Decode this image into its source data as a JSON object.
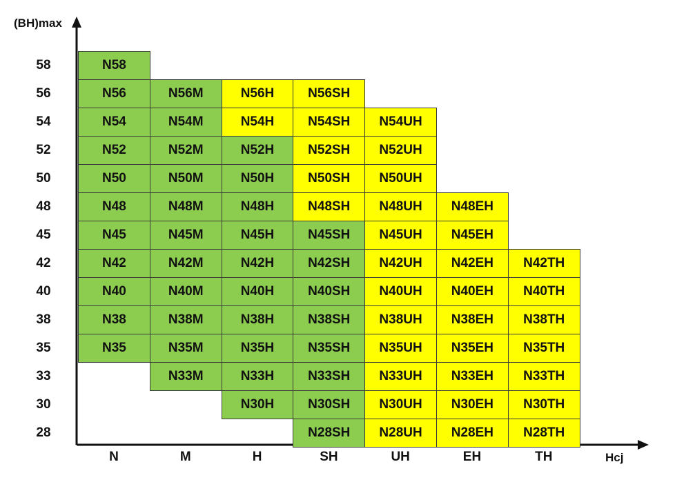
{
  "chart_data": {
    "type": "table",
    "ylabel": "(BH)max",
    "xlabel": "Hcj",
    "x_categories": [
      "N",
      "M",
      "H",
      "SH",
      "UH",
      "EH",
      "TH"
    ],
    "y_categories": [
      "58",
      "56",
      "54",
      "52",
      "50",
      "48",
      "45",
      "42",
      "40",
      "38",
      "35",
      "33",
      "30",
      "28"
    ],
    "colors": {
      "green": "#8ccd50",
      "yellow": "#ffff00",
      "axis": "#111111"
    },
    "grid": [
      [
        {
          "t": "N58",
          "c": "green"
        },
        null,
        null,
        null,
        null,
        null,
        null
      ],
      [
        {
          "t": "N56",
          "c": "green"
        },
        {
          "t": "N56M",
          "c": "green"
        },
        {
          "t": "N56H",
          "c": "yellow"
        },
        {
          "t": "N56SH",
          "c": "yellow"
        },
        null,
        null,
        null
      ],
      [
        {
          "t": "N54",
          "c": "green"
        },
        {
          "t": "N54M",
          "c": "green"
        },
        {
          "t": "N54H",
          "c": "yellow"
        },
        {
          "t": "N54SH",
          "c": "yellow"
        },
        {
          "t": "N54UH",
          "c": "yellow"
        },
        null,
        null
      ],
      [
        {
          "t": "N52",
          "c": "green"
        },
        {
          "t": "N52M",
          "c": "green"
        },
        {
          "t": "N52H",
          "c": "green"
        },
        {
          "t": "N52SH",
          "c": "yellow"
        },
        {
          "t": "N52UH",
          "c": "yellow"
        },
        null,
        null
      ],
      [
        {
          "t": "N50",
          "c": "green"
        },
        {
          "t": "N50M",
          "c": "green"
        },
        {
          "t": "N50H",
          "c": "green"
        },
        {
          "t": "N50SH",
          "c": "yellow"
        },
        {
          "t": "N50UH",
          "c": "yellow"
        },
        null,
        null
      ],
      [
        {
          "t": "N48",
          "c": "green"
        },
        {
          "t": "N48M",
          "c": "green"
        },
        {
          "t": "N48H",
          "c": "green"
        },
        {
          "t": "N48SH",
          "c": "yellow"
        },
        {
          "t": "N48UH",
          "c": "yellow"
        },
        {
          "t": "N48EH",
          "c": "yellow"
        },
        null
      ],
      [
        {
          "t": "N45",
          "c": "green"
        },
        {
          "t": "N45M",
          "c": "green"
        },
        {
          "t": "N45H",
          "c": "green"
        },
        {
          "t": "N45SH",
          "c": "green"
        },
        {
          "t": "N45UH",
          "c": "yellow"
        },
        {
          "t": "N45EH",
          "c": "yellow"
        },
        null
      ],
      [
        {
          "t": "N42",
          "c": "green"
        },
        {
          "t": "N42M",
          "c": "green"
        },
        {
          "t": "N42H",
          "c": "green"
        },
        {
          "t": "N42SH",
          "c": "green"
        },
        {
          "t": "N42UH",
          "c": "yellow"
        },
        {
          "t": "N42EH",
          "c": "yellow"
        },
        {
          "t": "N42TH",
          "c": "yellow"
        }
      ],
      [
        {
          "t": "N40",
          "c": "green"
        },
        {
          "t": "N40M",
          "c": "green"
        },
        {
          "t": "N40H",
          "c": "green"
        },
        {
          "t": "N40SH",
          "c": "green"
        },
        {
          "t": "N40UH",
          "c": "yellow"
        },
        {
          "t": "N40EH",
          "c": "yellow"
        },
        {
          "t": "N40TH",
          "c": "yellow"
        }
      ],
      [
        {
          "t": "N38",
          "c": "green"
        },
        {
          "t": "N38M",
          "c": "green"
        },
        {
          "t": "N38H",
          "c": "green"
        },
        {
          "t": "N38SH",
          "c": "green"
        },
        {
          "t": "N38UH",
          "c": "yellow"
        },
        {
          "t": "N38EH",
          "c": "yellow"
        },
        {
          "t": "N38TH",
          "c": "yellow"
        }
      ],
      [
        {
          "t": "N35",
          "c": "green"
        },
        {
          "t": "N35M",
          "c": "green"
        },
        {
          "t": "N35H",
          "c": "green"
        },
        {
          "t": "N35SH",
          "c": "green"
        },
        {
          "t": "N35UH",
          "c": "yellow"
        },
        {
          "t": "N35EH",
          "c": "yellow"
        },
        {
          "t": "N35TH",
          "c": "yellow"
        }
      ],
      [
        null,
        {
          "t": "N33M",
          "c": "green"
        },
        {
          "t": "N33H",
          "c": "green"
        },
        {
          "t": "N33SH",
          "c": "green"
        },
        {
          "t": "N33UH",
          "c": "yellow"
        },
        {
          "t": "N33EH",
          "c": "yellow"
        },
        {
          "t": "N33TH",
          "c": "yellow"
        }
      ],
      [
        null,
        null,
        {
          "t": "N30H",
          "c": "green"
        },
        {
          "t": "N30SH",
          "c": "green"
        },
        {
          "t": "N30UH",
          "c": "yellow"
        },
        {
          "t": "N30EH",
          "c": "yellow"
        },
        {
          "t": "N30TH",
          "c": "yellow"
        }
      ],
      [
        null,
        null,
        null,
        {
          "t": "N28SH",
          "c": "green"
        },
        {
          "t": "N28UH",
          "c": "yellow"
        },
        {
          "t": "N28EH",
          "c": "yellow"
        },
        {
          "t": "N28TH",
          "c": "yellow"
        }
      ]
    ]
  }
}
